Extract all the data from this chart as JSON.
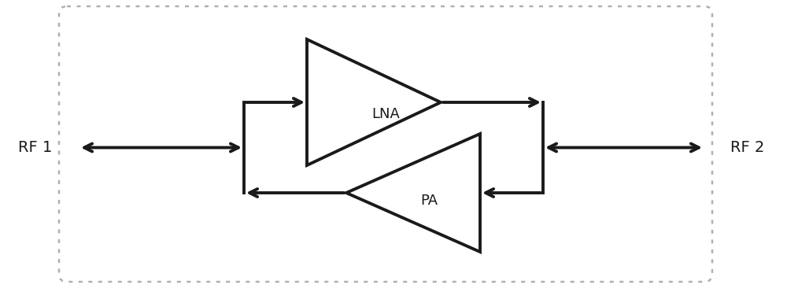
{
  "bg_color": "#ffffff",
  "border_color": "#b0b0b0",
  "line_color": "#1a1a1a",
  "lna_label": "LNA",
  "pa_label": "PA",
  "rf1_label": "RF 1",
  "rf2_label": "RF 2",
  "fig_width": 10.0,
  "fig_height": 3.71,
  "lw": 2.8
}
